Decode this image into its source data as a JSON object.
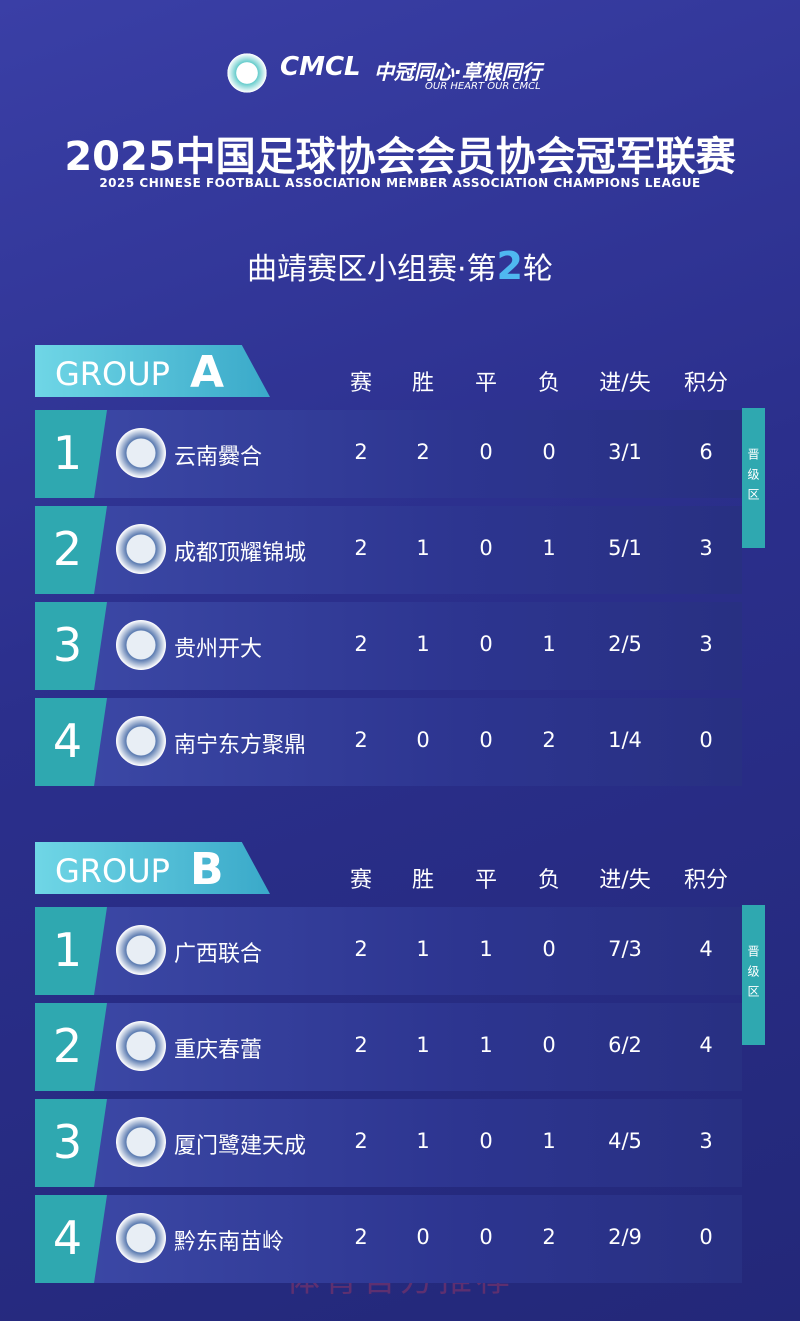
{
  "header": {
    "logo": "CMCL",
    "slogan": "中冠同心·草根同行",
    "slogan_en": "OUR HEART OUR CMCL",
    "title": "2025中国足球协会会员协会冠军联赛",
    "title_en": "2025 CHINESE FOOTBALL ASSOCIATION MEMBER ASSOCIATION CHAMPIONS LEAGUE",
    "round": [
      "曲靖赛区小组赛·第",
      "2",
      "轮"
    ]
  },
  "groups": [
    {
      "label": "GROUP",
      "letter": "A",
      "columns": [
        "赛",
        "胜",
        "平",
        "负",
        "进/失",
        "积分"
      ],
      "zone": "晋级区",
      "rows": [
        [
          1,
          "云南爨合",
          2,
          2,
          0,
          0,
          "3/1",
          6
        ],
        [
          2,
          "成都顶耀锦城",
          2,
          1,
          0,
          1,
          "5/1",
          3
        ],
        [
          3,
          "贵州开大",
          2,
          1,
          0,
          1,
          "2/5",
          3
        ],
        [
          4,
          "南宁东方聚鼎",
          2,
          0,
          0,
          2,
          "1/4",
          0
        ]
      ]
    },
    {
      "label": "GROUP",
      "letter": "B",
      "columns": [
        "赛",
        "胜",
        "平",
        "负",
        "进/失",
        "积分"
      ],
      "zone": "晋级区",
      "rows": [
        [
          1,
          "广西联合",
          2,
          1,
          1,
          0,
          "7/3",
          4
        ],
        [
          2,
          "重庆春蕾",
          2,
          1,
          1,
          0,
          "6/2",
          4
        ],
        [
          3,
          "厦门鹭建天成",
          2,
          1,
          0,
          1,
          "4/5",
          3
        ],
        [
          4,
          "黔东南苗岭",
          2,
          0,
          0,
          2,
          "2/9",
          0
        ]
      ]
    }
  ],
  "watermark": "体育官方推荐"
}
